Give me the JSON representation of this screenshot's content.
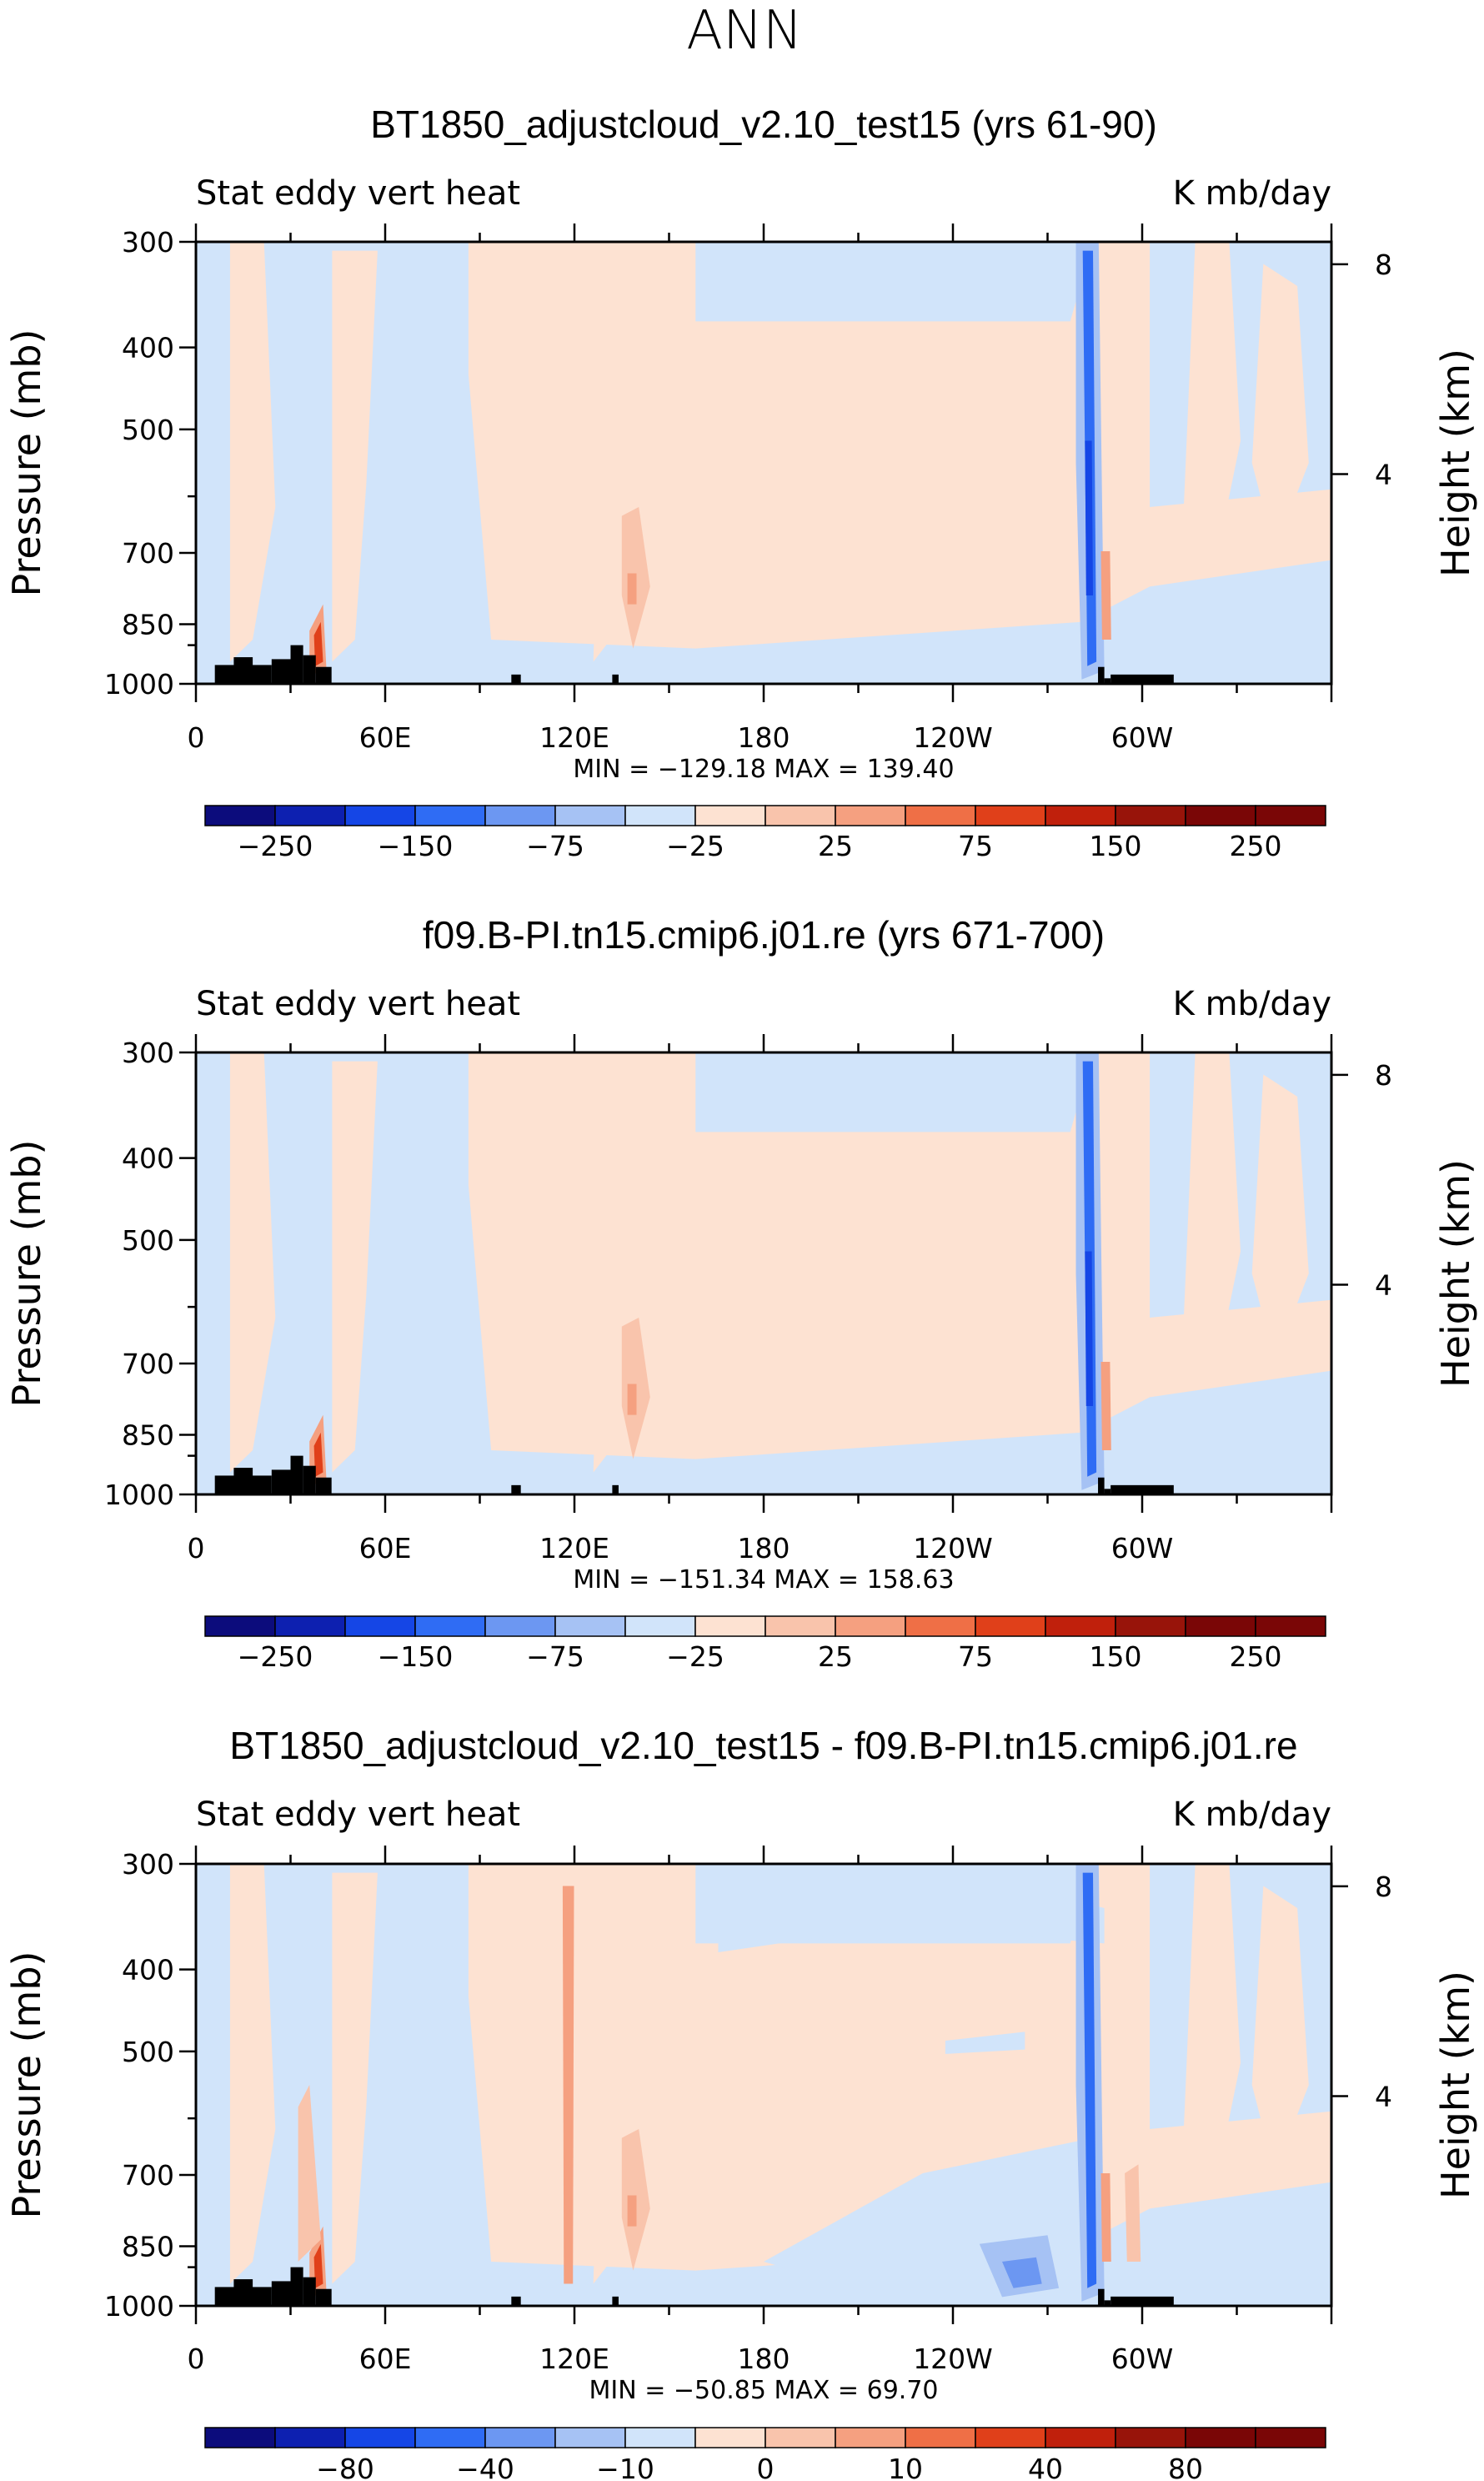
{
  "main_title": "ANN",
  "colors": {
    "cb12": [
      "#0c0c7c",
      "#0d20b0",
      "#1546e6",
      "#2f6cf4",
      "#6c97f2",
      "#a6c2f4",
      "#d1e4fa",
      "#fde2d2",
      "#f9c4ac",
      "#f5a080",
      "#ef6f46",
      "#e0401a",
      "#c0200c",
      "#98140a",
      "#7a0606"
    ],
    "land": "#000000"
  },
  "chart_data": [
    {
      "type": "heatmap",
      "title": "BT1850_adjustcloud_v2.10_test15 (yrs 61-90)",
      "left_string": "Stat eddy vert heat",
      "right_string": "K mb/day",
      "ylabel": "Pressure (mb)",
      "ylabel_right": "Height (km)",
      "x_ticks": [
        "0",
        "60E",
        "120E",
        "180",
        "120W",
        "60W"
      ],
      "x_tick_values": [
        0,
        60,
        120,
        180,
        240,
        300
      ],
      "xlim": [
        0,
        360
      ],
      "y_ticks": [
        "300",
        "400",
        "500",
        "700",
        "850",
        "1000"
      ],
      "y_tick_values": [
        300,
        400,
        500,
        700,
        850,
        1000
      ],
      "ylim": [
        1000,
        300
      ],
      "height_ticks": [
        "8",
        "4"
      ],
      "height_tick_values": [
        8,
        4
      ],
      "min_max": "MIN = −129.18   MAX = 139.40",
      "min": -129.18,
      "max": 139.4,
      "colorbar_levels": [
        "−250",
        "−150",
        "−75",
        "−25",
        "25",
        "75",
        "150",
        "250"
      ],
      "colorbar_label_after_box": [
        1,
        3,
        5,
        7,
        9,
        11,
        13,
        15
      ]
    },
    {
      "type": "heatmap",
      "title": "f09.B-PI.tn15.cmip6.j01.re (yrs 671-700)",
      "left_string": "Stat eddy vert heat",
      "right_string": "K mb/day",
      "ylabel": "Pressure (mb)",
      "ylabel_right": "Height (km)",
      "x_ticks": [
        "0",
        "60E",
        "120E",
        "180",
        "120W",
        "60W"
      ],
      "x_tick_values": [
        0,
        60,
        120,
        180,
        240,
        300
      ],
      "xlim": [
        0,
        360
      ],
      "y_ticks": [
        "300",
        "400",
        "500",
        "700",
        "850",
        "1000"
      ],
      "y_tick_values": [
        300,
        400,
        500,
        700,
        850,
        1000
      ],
      "ylim": [
        1000,
        300
      ],
      "height_ticks": [
        "8",
        "4"
      ],
      "height_tick_values": [
        8,
        4
      ],
      "min_max": "MIN = −151.34   MAX = 158.63",
      "min": -151.34,
      "max": 158.63,
      "colorbar_levels": [
        "−250",
        "−150",
        "−75",
        "−25",
        "25",
        "75",
        "150",
        "250"
      ],
      "colorbar_label_after_box": [
        1,
        3,
        5,
        7,
        9,
        11,
        13,
        15
      ]
    },
    {
      "type": "heatmap",
      "title": "BT1850_adjustcloud_v2.10_test15 - f09.B-PI.tn15.cmip6.j01.re",
      "left_string": "Stat eddy vert heat",
      "right_string": "K mb/day",
      "ylabel": "Pressure (mb)",
      "ylabel_right": "Height (km)",
      "x_ticks": [
        "0",
        "60E",
        "120E",
        "180",
        "120W",
        "60W"
      ],
      "x_tick_values": [
        0,
        60,
        120,
        180,
        240,
        300
      ],
      "xlim": [
        0,
        360
      ],
      "y_ticks": [
        "300",
        "400",
        "500",
        "700",
        "850",
        "1000"
      ],
      "y_tick_values": [
        300,
        400,
        500,
        700,
        850,
        1000
      ],
      "ylim": [
        1000,
        300
      ],
      "height_ticks": [
        "8",
        "4"
      ],
      "height_tick_values": [
        8,
        4
      ],
      "min_max": "MIN = −50.85   MAX =   69.70",
      "min": -50.85,
      "max": 69.7,
      "colorbar_levels": [
        "−80",
        "−40",
        "−10",
        "0",
        "10",
        "40",
        "80"
      ],
      "colorbar_label_after_box": [
        2,
        4,
        6,
        8,
        10,
        12,
        14
      ]
    }
  ]
}
